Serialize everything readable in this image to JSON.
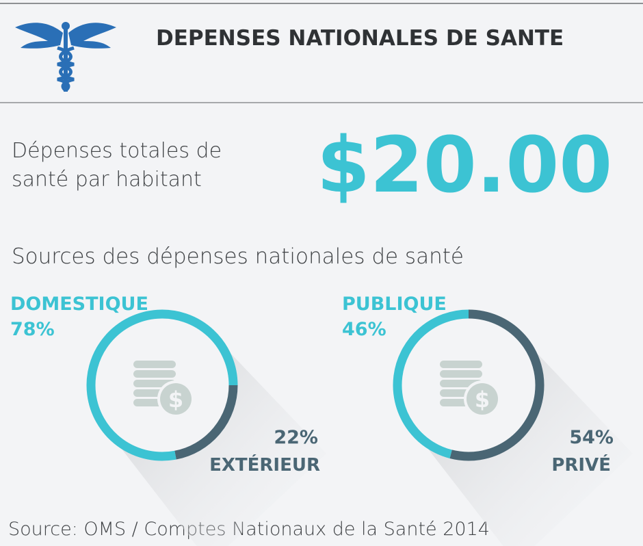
{
  "header": {
    "title": "DEPENSES NATIONALES DE SANTE"
  },
  "total": {
    "label_lines": [
      "Dépenses totales de",
      "santé par habitant"
    ],
    "value": "$20.00"
  },
  "sources_title": "Sources des dépenses nationales de santé",
  "chart_data": [
    {
      "type": "pie",
      "categories": [
        "DOMESTIQUE",
        "EXTÉRIEUR"
      ],
      "values": [
        78,
        22
      ],
      "value_labels": [
        "78%",
        "22%"
      ],
      "colors": [
        "#3cc3d3",
        "#4a6674"
      ]
    },
    {
      "type": "pie",
      "categories": [
        "PUBLIQUE",
        "PRIVÉ"
      ],
      "values": [
        46,
        54
      ],
      "value_labels": [
        "46%",
        "54%"
      ],
      "colors": [
        "#3cc3d3",
        "#4a6674"
      ]
    }
  ],
  "footer": "Source: OMS / Comptes Nationaux de la Santé 2014"
}
